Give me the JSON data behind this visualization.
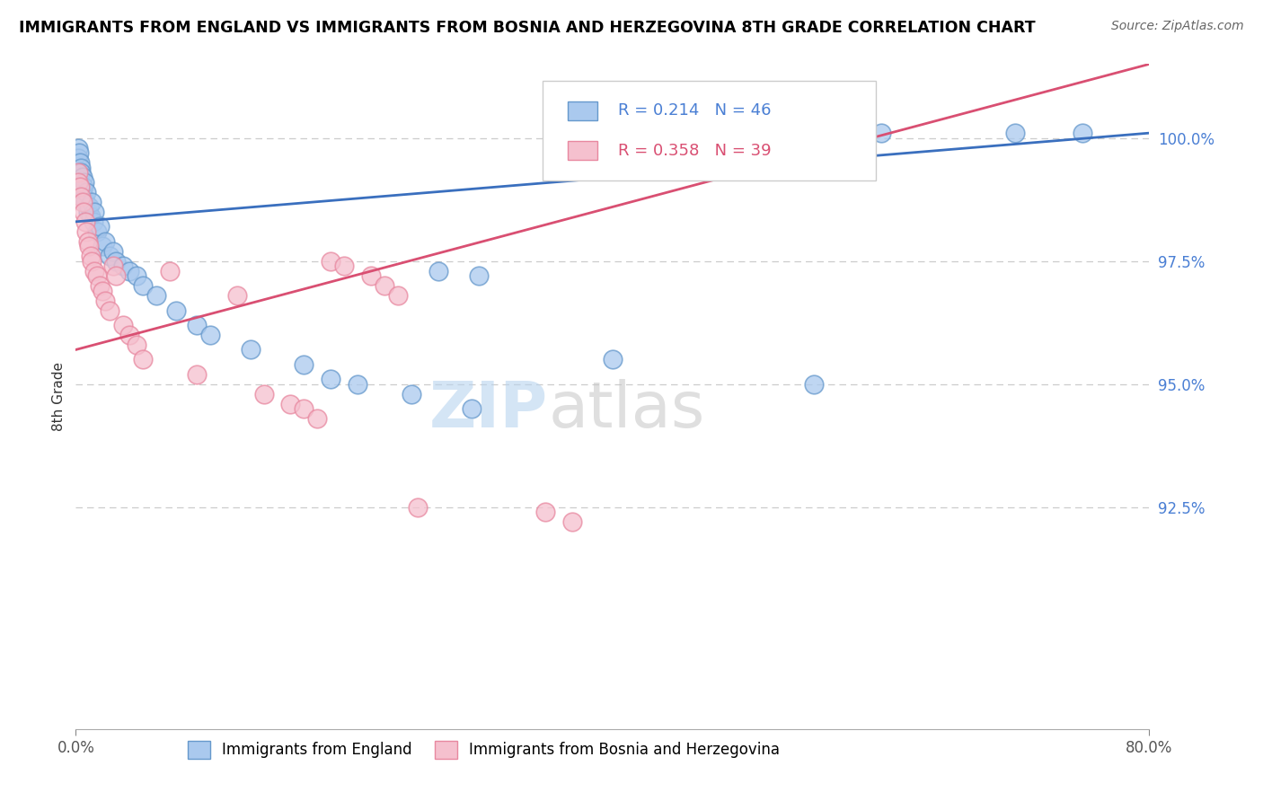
{
  "title": "IMMIGRANTS FROM ENGLAND VS IMMIGRANTS FROM BOSNIA AND HERZEGOVINA 8TH GRADE CORRELATION CHART",
  "source": "Source: ZipAtlas.com",
  "ylabel": "8th Grade",
  "england_R": "0.214",
  "england_N": "46",
  "bosnia_R": "0.358",
  "bosnia_N": "39",
  "england_color": "#aac9ee",
  "england_edge_color": "#6699cc",
  "bosnia_color": "#f5c0ce",
  "bosnia_edge_color": "#e888a0",
  "trend_england_color": "#3a6fbe",
  "trend_bosnia_color": "#d94f72",
  "ytick_color": "#4a7fd4",
  "xtick_color": "#555555",
  "legend_england_label": "Immigrants from England",
  "legend_bosnia_label": "Immigrants from Bosnia and Herzegovina",
  "xlim": [
    0.0,
    80.0
  ],
  "ylim": [
    88.0,
    101.5
  ],
  "y_ticks": [
    92.5,
    95.0,
    97.5,
    100.0
  ],
  "x_ticks": [
    0.0,
    80.0
  ],
  "grid_color": "#cccccc",
  "eng_trend_x0": 0.0,
  "eng_trend_y0": 98.3,
  "eng_trend_x1": 80.0,
  "eng_trend_y1": 100.1,
  "bos_trend_x0": 0.0,
  "bos_trend_y0": 95.7,
  "bos_trend_x1": 80.0,
  "bos_trend_y1": 101.5,
  "eng_x": [
    0.15,
    0.2,
    0.25,
    0.3,
    0.35,
    0.4,
    0.5,
    0.55,
    0.6,
    0.65,
    0.7,
    0.8,
    0.9,
    1.0,
    1.1,
    1.2,
    1.3,
    1.4,
    1.6,
    1.8,
    2.0,
    2.2,
    2.5,
    2.8,
    3.0,
    3.5,
    4.0,
    4.5,
    5.0,
    6.0,
    7.5,
    9.0,
    10.0,
    13.0,
    17.0,
    19.0,
    21.0,
    25.0,
    27.0,
    29.5,
    30.0,
    40.0,
    55.0,
    60.0,
    70.0,
    75.0
  ],
  "eng_y": [
    99.8,
    99.6,
    99.7,
    99.5,
    99.4,
    99.3,
    99.2,
    99.0,
    98.8,
    99.1,
    98.7,
    98.9,
    98.5,
    98.6,
    98.4,
    98.7,
    98.3,
    98.5,
    98.1,
    98.2,
    97.8,
    97.9,
    97.6,
    97.7,
    97.5,
    97.4,
    97.3,
    97.2,
    97.0,
    96.8,
    96.5,
    96.2,
    96.0,
    95.7,
    95.4,
    95.1,
    95.0,
    94.8,
    97.3,
    94.5,
    97.2,
    95.5,
    95.0,
    100.1,
    100.1,
    100.1
  ],
  "bos_x": [
    0.15,
    0.2,
    0.3,
    0.4,
    0.5,
    0.6,
    0.7,
    0.8,
    0.9,
    1.0,
    1.1,
    1.2,
    1.4,
    1.6,
    1.8,
    2.0,
    2.2,
    2.5,
    2.8,
    3.0,
    3.5,
    4.0,
    4.5,
    5.0,
    7.0,
    9.0,
    12.0,
    14.0,
    16.0,
    17.0,
    18.0,
    19.0,
    20.0,
    22.0,
    23.0,
    24.0,
    25.5,
    35.0,
    37.0
  ],
  "bos_y": [
    99.3,
    99.1,
    99.0,
    98.8,
    98.7,
    98.5,
    98.3,
    98.1,
    97.9,
    97.8,
    97.6,
    97.5,
    97.3,
    97.2,
    97.0,
    96.9,
    96.7,
    96.5,
    97.4,
    97.2,
    96.2,
    96.0,
    95.8,
    95.5,
    97.3,
    95.2,
    96.8,
    94.8,
    94.6,
    94.5,
    94.3,
    97.5,
    97.4,
    97.2,
    97.0,
    96.8,
    92.5,
    92.4,
    92.2
  ]
}
